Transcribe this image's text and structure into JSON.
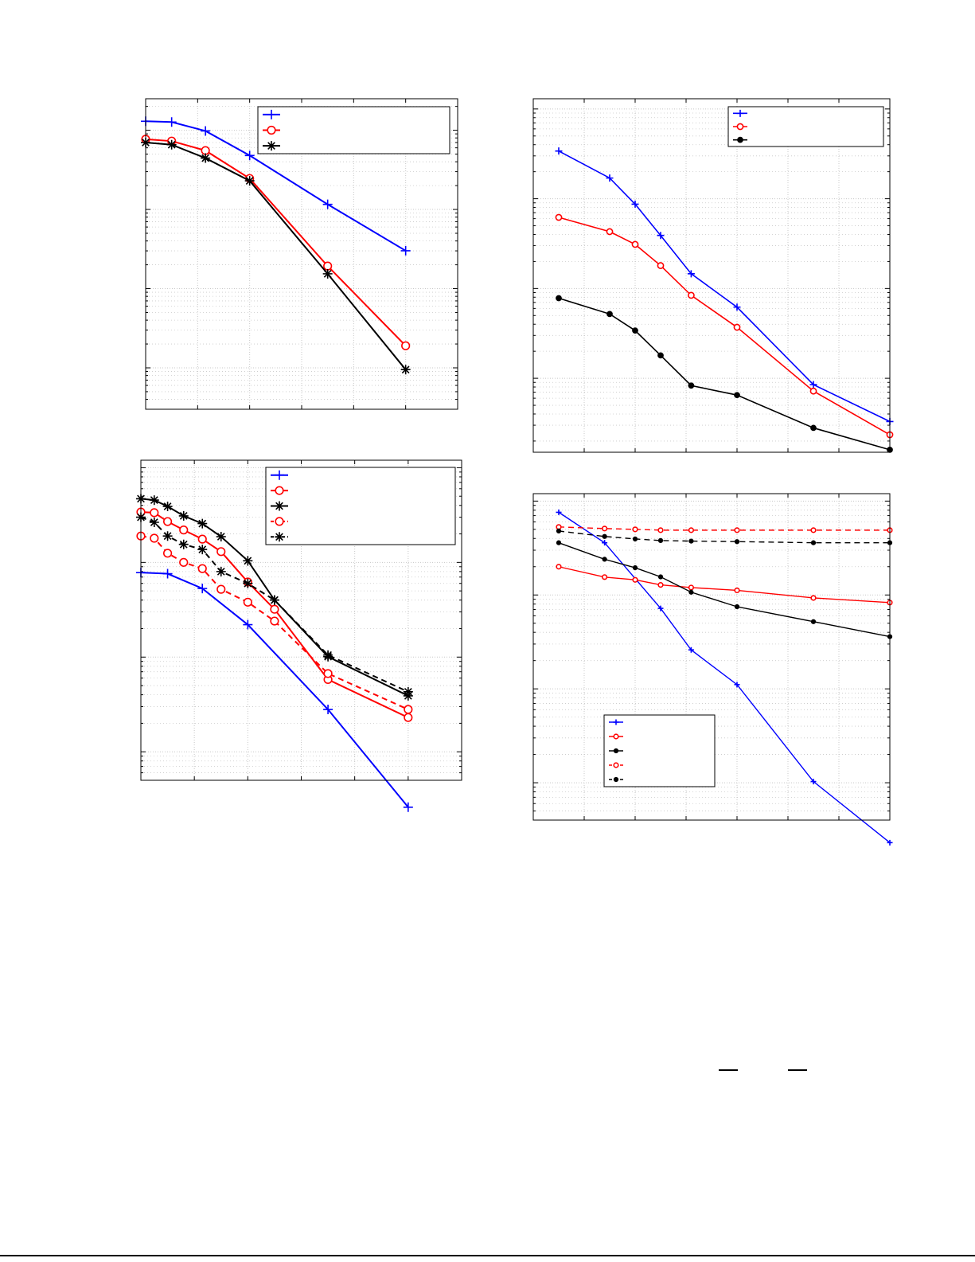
{
  "colors": {
    "blue": "#0000ff",
    "red": "#ff0000",
    "black": "#000000",
    "grid": "#c8c8c8",
    "axis": "#000000"
  },
  "chart_data": [
    {
      "type": "line",
      "title": "",
      "xlabel": "",
      "ylabel": "",
      "xlim": [
        0,
        6
      ],
      "ylim": [
        0.0003,
        2.5
      ],
      "yscale": "log",
      "grid": true,
      "legend": {
        "placement": "top-right",
        "entries": 3
      },
      "series": [
        {
          "color": "#0000ff",
          "marker": "plus",
          "dash": "solid",
          "x": [
            0,
            0.5,
            1.15,
            2,
            3.5,
            5
          ],
          "y": [
            1.3,
            1.27,
            0.98,
            0.48,
            0.116,
            0.0301
          ]
        },
        {
          "color": "#ff0000",
          "marker": "circle",
          "dash": "solid",
          "x": [
            0,
            0.5,
            1.15,
            2,
            3.5,
            5
          ],
          "y": [
            0.77,
            0.73,
            0.554,
            0.246,
            0.0193,
            0.0019
          ]
        },
        {
          "color": "#000000",
          "marker": "asterisk",
          "dash": "solid",
          "x": [
            0,
            0.5,
            1.15,
            2,
            3.5,
            5
          ],
          "y": [
            0.7,
            0.657,
            0.445,
            0.23,
            0.0154,
            0.00095
          ]
        }
      ]
    },
    {
      "type": "line",
      "title": "",
      "xlabel": "",
      "ylabel": "",
      "xlim": [
        0,
        6
      ],
      "ylim": [
        0.0005,
        1.2
      ],
      "yscale": "log",
      "grid": true,
      "legend": {
        "placement": "top-right",
        "entries": 5
      },
      "series": [
        {
          "color": "#0000ff",
          "marker": "plus",
          "dash": "solid",
          "x": [
            0,
            0.5,
            1.15,
            2,
            3.5,
            5
          ],
          "y": [
            0.078,
            0.076,
            0.053,
            0.022,
            0.0028,
            0.00026
          ]
        },
        {
          "color": "#ff0000",
          "marker": "circle",
          "dash": "solid",
          "x": [
            0,
            0.25,
            0.5,
            0.8,
            1.15,
            1.5,
            2,
            2.5,
            3.5,
            5
          ],
          "y": [
            0.34,
            0.335,
            0.27,
            0.22,
            0.176,
            0.13,
            0.062,
            0.032,
            0.0058,
            0.0023
          ]
        },
        {
          "color": "#000000",
          "marker": "asterisk",
          "dash": "solid",
          "x": [
            0,
            0.25,
            0.5,
            0.8,
            1.15,
            1.5,
            2,
            2.5,
            3.5,
            5
          ],
          "y": [
            0.47,
            0.455,
            0.39,
            0.31,
            0.257,
            0.187,
            0.104,
            0.04,
            0.0101,
            0.0039
          ]
        },
        {
          "color": "#ff0000",
          "marker": "circle",
          "dash": "dashed",
          "x": [
            0,
            0.25,
            0.5,
            0.8,
            1.15,
            1.5,
            2,
            2.5,
            3.5,
            5
          ],
          "y": [
            0.19,
            0.18,
            0.125,
            0.1,
            0.086,
            0.052,
            0.038,
            0.024,
            0.0067,
            0.0028
          ]
        },
        {
          "color": "#000000",
          "marker": "asterisk",
          "dash": "dashed",
          "x": [
            0,
            0.25,
            0.5,
            0.8,
            1.15,
            1.5,
            2,
            2.5,
            3.5,
            5
          ],
          "y": [
            0.3,
            0.265,
            0.19,
            0.155,
            0.137,
            0.08,
            0.06,
            0.04,
            0.0105,
            0.0043
          ]
        }
      ]
    },
    {
      "type": "line",
      "title": "",
      "xlabel": "",
      "ylabel": "",
      "xlim": [
        0,
        7
      ],
      "ylim": [
        0.00015,
        1.3
      ],
      "yscale": "log",
      "grid": true,
      "legend": {
        "placement": "top-right",
        "entries": 3
      },
      "series": [
        {
          "color": "#0000ff",
          "marker": "plus",
          "dash": "solid",
          "x": [
            0.5,
            1.5,
            2,
            2.5,
            3.1,
            4,
            5.5,
            7
          ],
          "y": [
            0.34,
            0.17,
            0.087,
            0.039,
            0.0146,
            0.0062,
            0.00085,
            0.00033
          ]
        },
        {
          "color": "#ff0000",
          "marker": "circle",
          "dash": "solid",
          "x": [
            0.5,
            1.5,
            2,
            2.5,
            3.1,
            4,
            5.5,
            7
          ],
          "y": [
            0.062,
            0.043,
            0.031,
            0.018,
            0.0084,
            0.0037,
            0.00072,
            0.000235
          ]
        },
        {
          "color": "#000000",
          "marker": "dot",
          "dash": "solid",
          "x": [
            0.5,
            1.5,
            2,
            2.5,
            3.1,
            4,
            5.5,
            7
          ],
          "y": [
            0.0078,
            0.0052,
            0.0034,
            0.0018,
            0.00083,
            0.00065,
            0.00028,
            0.00016
          ]
        }
      ]
    },
    {
      "type": "line",
      "title": "",
      "xlabel": "",
      "ylabel": "",
      "xlim": [
        0,
        7
      ],
      "ylim": [
        0.0004,
        1.2
      ],
      "yscale": "log",
      "grid": true,
      "legend": {
        "placement": "bottom-left",
        "entries": 5
      },
      "series": [
        {
          "color": "#0000ff",
          "marker": "plus",
          "dash": "solid",
          "x": [
            0.5,
            1.4,
            2.5,
            3.1,
            4,
            5.5,
            7
          ],
          "y": [
            0.76,
            0.36,
            0.072,
            0.026,
            0.0111,
            0.00103,
            0.00023
          ]
        },
        {
          "color": "#ff0000",
          "marker": "circle",
          "dash": "solid",
          "x": [
            0.5,
            1.4,
            2,
            2.5,
            3.1,
            4,
            5.5,
            7
          ],
          "y": [
            0.2,
            0.155,
            0.145,
            0.128,
            0.12,
            0.112,
            0.093,
            0.083
          ]
        },
        {
          "color": "#000000",
          "marker": "dot",
          "dash": "solid",
          "x": [
            0.5,
            1.4,
            2,
            2.5,
            3.1,
            4,
            5.5,
            7
          ],
          "y": [
            0.36,
            0.24,
            0.195,
            0.156,
            0.107,
            0.075,
            0.052,
            0.036
          ]
        },
        {
          "color": "#ff0000",
          "marker": "circle",
          "dash": "dashed",
          "x": [
            0.5,
            1.4,
            2,
            2.5,
            3.1,
            4,
            5.5,
            7
          ],
          "y": [
            0.53,
            0.51,
            0.5,
            0.49,
            0.49,
            0.49,
            0.49,
            0.49
          ]
        },
        {
          "color": "#000000",
          "marker": "dot",
          "dash": "dashed",
          "x": [
            0.5,
            1.4,
            2,
            2.5,
            3.1,
            4,
            5.5,
            7
          ],
          "y": [
            0.48,
            0.42,
            0.395,
            0.38,
            0.375,
            0.37,
            0.36,
            0.36
          ]
        }
      ]
    }
  ]
}
